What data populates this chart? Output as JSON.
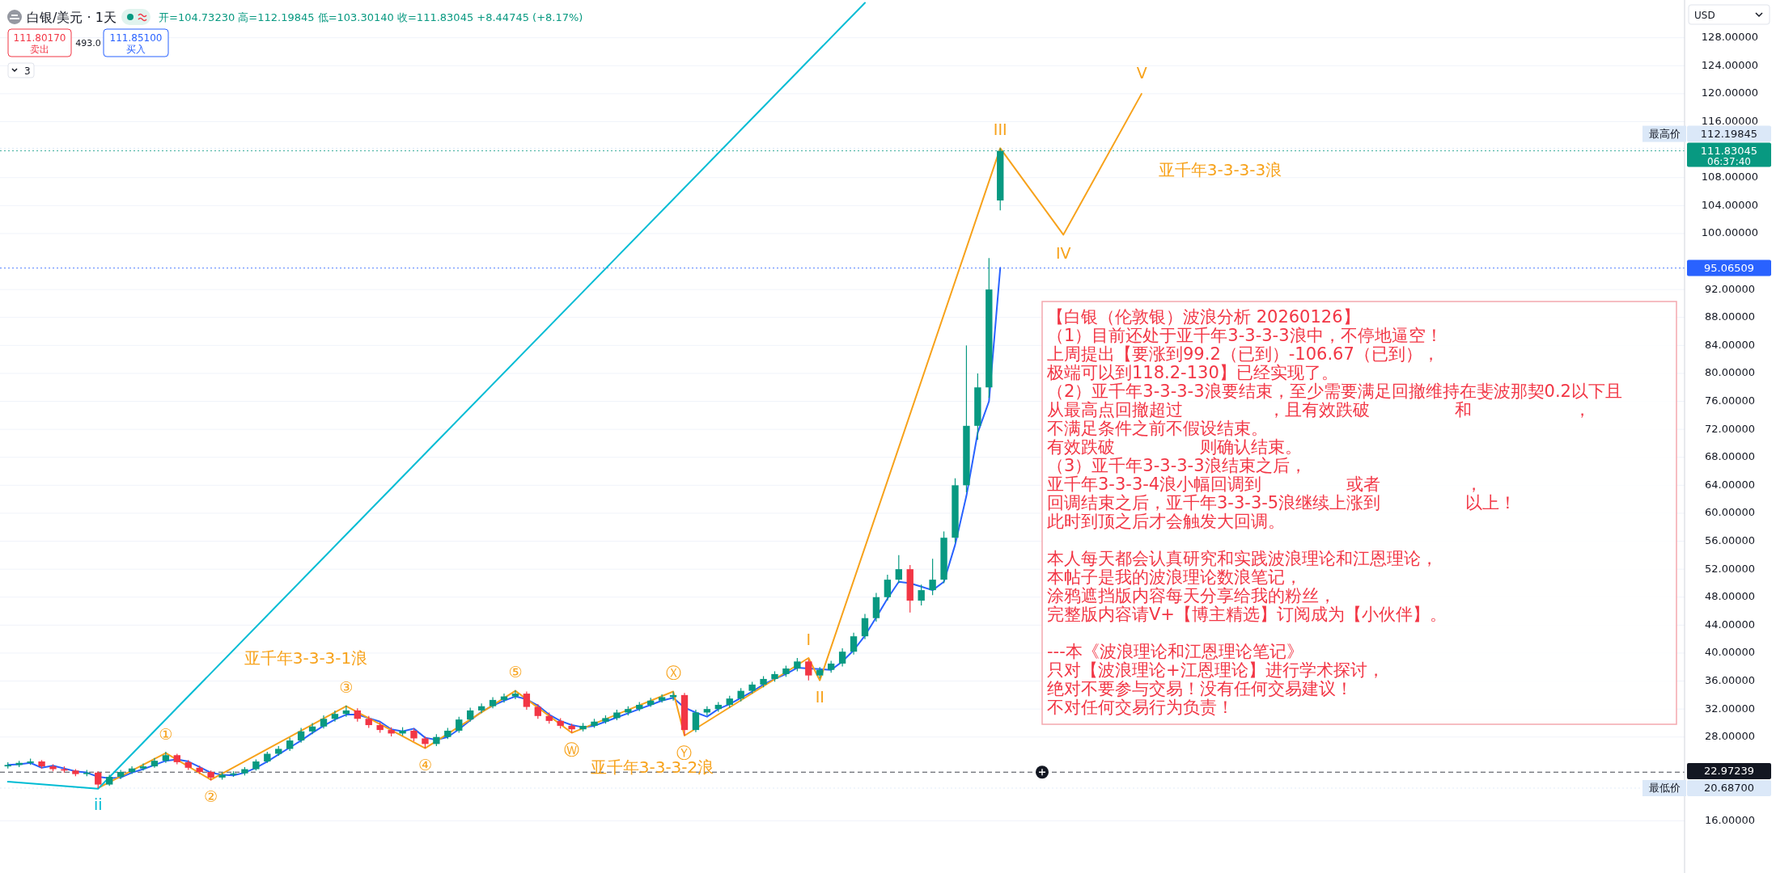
{
  "chart_data": {
    "type": "candlestick",
    "title": "白银/美元 · 1天",
    "subtitle": "开=104.73230 高=112.19845 低=103.30140 收=111.83045 +8.44745 (+8.17%)",
    "categories": [
      null,
      null,
      null,
      null,
      null,
      null,
      null,
      null,
      null,
      null,
      null,
      null,
      null,
      null,
      null,
      null,
      null,
      null,
      null,
      null,
      null,
      null,
      null,
      null,
      null,
      null,
      null,
      null,
      null,
      null,
      null,
      null,
      null,
      null,
      null,
      null,
      null,
      null,
      null,
      null,
      null,
      null,
      null,
      null,
      null,
      null,
      null,
      null,
      null,
      null,
      null,
      null,
      null,
      null,
      null,
      null,
      null,
      null,
      null,
      null,
      null,
      null,
      null,
      null,
      null,
      null,
      null,
      null,
      null,
      null,
      null,
      null,
      null,
      null,
      null,
      null,
      null,
      null,
      null,
      null,
      null,
      null,
      null,
      null,
      null,
      null,
      null,
      null,
      null
    ],
    "ohlc": [
      [
        23.8,
        24.4,
        23.5,
        24.0
      ],
      [
        24.0,
        24.6,
        23.7,
        24.3
      ],
      [
        24.3,
        24.9,
        24.0,
        24.5
      ],
      [
        24.5,
        24.7,
        23.5,
        23.8
      ],
      [
        23.8,
        24.1,
        23.1,
        23.4
      ],
      [
        23.4,
        23.8,
        22.9,
        23.2
      ],
      [
        23.2,
        23.4,
        22.4,
        22.7
      ],
      [
        22.7,
        23.3,
        22.4,
        22.9
      ],
      [
        22.9,
        23.1,
        20.687,
        21.2
      ],
      [
        21.2,
        22.6,
        21.0,
        22.3
      ],
      [
        22.3,
        23.3,
        22.0,
        23.0
      ],
      [
        23.0,
        23.8,
        22.7,
        23.5
      ],
      [
        23.5,
        24.2,
        23.2,
        23.8
      ],
      [
        23.8,
        25.0,
        23.6,
        24.6
      ],
      [
        24.6,
        25.9,
        24.3,
        25.4
      ],
      [
        25.4,
        25.6,
        24.1,
        24.4
      ],
      [
        24.4,
        24.7,
        23.3,
        23.6
      ],
      [
        23.6,
        23.9,
        22.7,
        23.0
      ],
      [
        23.0,
        23.2,
        21.8,
        22.2
      ],
      [
        22.2,
        22.9,
        21.9,
        22.6
      ],
      [
        22.6,
        23.1,
        22.3,
        22.8
      ],
      [
        22.8,
        23.7,
        22.5,
        23.4
      ],
      [
        23.4,
        24.8,
        23.2,
        24.5
      ],
      [
        24.5,
        25.9,
        24.3,
        25.6
      ],
      [
        25.6,
        26.7,
        25.3,
        26.3
      ],
      [
        26.3,
        27.9,
        26.0,
        27.5
      ],
      [
        27.5,
        29.3,
        27.2,
        28.8
      ],
      [
        28.8,
        30.0,
        28.4,
        29.5
      ],
      [
        29.5,
        31.1,
        29.2,
        30.6
      ],
      [
        30.6,
        31.8,
        30.2,
        31.3
      ],
      [
        31.3,
        32.5,
        30.9,
        31.8
      ],
      [
        31.8,
        32.1,
        30.2,
        30.6
      ],
      [
        30.6,
        31.0,
        29.3,
        29.7
      ],
      [
        29.7,
        30.1,
        28.6,
        29.0
      ],
      [
        29.0,
        29.4,
        28.1,
        28.5
      ],
      [
        28.5,
        29.4,
        28.2,
        28.9
      ],
      [
        28.9,
        29.2,
        27.4,
        27.8
      ],
      [
        27.8,
        28.1,
        26.4,
        27.0
      ],
      [
        27.0,
        28.4,
        26.7,
        28.0
      ],
      [
        28.0,
        29.3,
        27.7,
        28.9
      ],
      [
        28.9,
        30.9,
        28.6,
        30.5
      ],
      [
        30.5,
        32.2,
        30.2,
        31.8
      ],
      [
        31.8,
        32.8,
        31.4,
        32.4
      ],
      [
        32.4,
        33.7,
        32.1,
        33.3
      ],
      [
        33.3,
        34.2,
        32.9,
        33.8
      ],
      [
        33.8,
        34.7,
        33.4,
        34.2
      ],
      [
        34.2,
        34.5,
        31.9,
        32.3
      ],
      [
        32.3,
        32.7,
        30.6,
        31.0
      ],
      [
        31.0,
        31.5,
        29.9,
        30.3
      ],
      [
        30.3,
        30.7,
        29.2,
        29.6
      ],
      [
        29.6,
        29.9,
        28.6,
        29.1
      ],
      [
        29.1,
        30.0,
        28.8,
        29.6
      ],
      [
        29.6,
        30.6,
        29.3,
        30.2
      ],
      [
        30.2,
        31.1,
        29.9,
        30.7
      ],
      [
        30.7,
        31.9,
        30.4,
        31.5
      ],
      [
        31.5,
        32.4,
        31.1,
        32.0
      ],
      [
        32.0,
        33.0,
        31.7,
        32.6
      ],
      [
        32.6,
        33.6,
        32.3,
        33.2
      ],
      [
        33.2,
        34.1,
        32.9,
        33.7
      ],
      [
        33.7,
        34.5,
        33.2,
        34.0
      ],
      [
        34.0,
        34.3,
        28.2,
        29.0
      ],
      [
        29.0,
        31.9,
        28.7,
        31.5
      ],
      [
        31.5,
        32.4,
        31.1,
        32.0
      ],
      [
        32.0,
        33.0,
        31.6,
        32.6
      ],
      [
        32.6,
        33.9,
        32.2,
        33.5
      ],
      [
        33.5,
        35.0,
        33.1,
        34.6
      ],
      [
        34.6,
        35.9,
        34.2,
        35.5
      ],
      [
        35.5,
        36.7,
        35.1,
        36.3
      ],
      [
        36.3,
        37.4,
        35.9,
        37.0
      ],
      [
        37.0,
        38.2,
        36.6,
        37.8
      ],
      [
        37.8,
        39.3,
        37.4,
        38.8
      ],
      [
        38.8,
        39.1,
        36.1,
        36.8
      ],
      [
        36.8,
        38.0,
        36.4,
        37.6
      ],
      [
        37.6,
        38.9,
        37.2,
        38.5
      ],
      [
        38.5,
        40.7,
        38.1,
        40.2
      ],
      [
        40.2,
        42.9,
        39.8,
        42.4
      ],
      [
        42.4,
        45.6,
        42.0,
        45.0
      ],
      [
        45.0,
        48.6,
        44.5,
        48.0
      ],
      [
        48.0,
        51.2,
        47.5,
        50.5
      ],
      [
        50.5,
        54.0,
        50.0,
        52.0
      ],
      [
        52.0,
        52.6,
        45.8,
        47.5
      ],
      [
        47.5,
        49.8,
        46.8,
        49.0
      ],
      [
        49.0,
        53.5,
        48.3,
        50.5
      ],
      [
        50.5,
        57.4,
        50.0,
        56.5
      ],
      [
        56.5,
        65.0,
        55.8,
        64.0
      ],
      [
        64.0,
        84.0,
        63.0,
        72.5
      ],
      [
        72.5,
        80.0,
        70.5,
        78.0
      ],
      [
        78.0,
        96.5,
        76.5,
        92.0
      ],
      [
        104.7323,
        112.19845,
        103.3014,
        111.83045
      ]
    ],
    "series": [
      {
        "type": "line",
        "color": "#2962ff",
        "values": [
          24.0,
          24.1,
          24.3,
          23.6,
          23.9,
          23.5,
          23.1,
          22.9,
          22.3,
          22.1,
          22.2,
          22.9,
          23.4,
          24.0,
          24.6,
          24.8,
          24.5,
          23.7,
          22.9,
          22.6,
          22.5,
          22.9,
          23.6,
          24.5,
          25.5,
          26.5,
          27.5,
          28.6,
          29.6,
          30.5,
          31.2,
          31.2,
          30.7,
          30.2,
          29.1,
          28.8,
          29.2,
          27.9,
          27.6,
          28.0,
          29.1,
          30.4,
          31.6,
          32.5,
          33.2,
          33.8,
          33.4,
          32.5,
          31.2,
          30.3,
          29.7,
          29.4,
          29.6,
          30.2,
          30.8,
          31.4,
          32.0,
          32.6,
          33.2,
          33.6,
          32.2,
          31.5,
          30.9,
          32.0,
          32.7,
          33.6,
          34.5,
          35.5,
          36.3,
          37.0,
          37.9,
          37.8,
          37.7,
          37.6,
          38.8,
          40.4,
          42.5,
          45.1,
          47.8,
          50.2,
          50.0,
          49.5,
          49.0,
          50.2,
          55.5,
          62.5,
          71.5,
          76.0,
          95.1
        ]
      },
      {
        "type": "line",
        "color": "#f7a21b",
        "values": [
          null,
          null,
          null,
          null,
          null,
          null,
          null,
          null,
          20.7,
          null,
          null,
          null,
          null,
          null,
          25.7,
          null,
          null,
          null,
          21.9,
          null,
          null,
          null,
          null,
          null,
          null,
          null,
          null,
          null,
          null,
          null,
          32.4,
          null,
          null,
          null,
          null,
          null,
          null,
          26.4,
          null,
          null,
          null,
          null,
          null,
          null,
          null,
          34.6,
          null,
          null,
          null,
          null,
          28.6,
          null,
          null,
          null,
          null,
          null,
          null,
          null,
          null,
          34.5,
          28.2,
          null,
          null,
          null,
          null,
          null,
          null,
          null,
          null,
          null,
          null,
          39.3,
          36.1,
          null,
          null,
          null,
          null,
          null,
          null,
          null,
          null,
          null,
          null,
          null,
          null,
          null,
          null,
          null,
          112.2
        ]
      },
      {
        "type": "line",
        "color": "#00bcd4",
        "values": [
          21.6,
          null,
          null,
          null,
          null,
          null,
          null,
          null,
          20.6,
          null,
          null,
          null,
          null,
          null,
          null,
          null,
          null,
          null,
          null,
          null,
          null,
          null,
          null,
          null,
          null,
          null,
          null,
          null,
          null,
          null,
          null,
          null,
          null,
          null,
          null,
          null,
          null,
          null,
          null,
          null,
          null,
          null,
          null,
          null,
          null,
          null,
          null,
          null,
          null,
          null,
          null,
          null,
          null,
          null,
          null,
          null,
          null,
          null,
          null,
          null,
          null,
          null,
          null,
          null,
          null,
          null,
          null,
          null,
          null,
          null,
          null,
          null,
          null,
          null,
          null,
          null,
          133.0,
          null,
          null,
          null,
          null,
          null,
          null,
          null,
          null,
          null,
          null,
          null,
          null
        ]
      }
    ],
    "ylim": [
      8.55,
      133.4
    ],
    "yticks": [
      {
        "value": 16,
        "label": "16.00000"
      },
      {
        "value": 28,
        "label": "28.00000"
      },
      {
        "value": 32,
        "label": "32.00000"
      },
      {
        "value": 36,
        "label": "36.00000"
      },
      {
        "value": 40,
        "label": "40.00000"
      },
      {
        "value": 44,
        "label": "44.00000"
      },
      {
        "value": 48,
        "label": "48.00000"
      },
      {
        "value": 52,
        "label": "52.00000"
      },
      {
        "value": 56,
        "label": "56.00000"
      },
      {
        "value": 60,
        "label": "60.00000"
      },
      {
        "value": 64,
        "label": "64.00000"
      },
      {
        "value": 68,
        "label": "68.00000"
      },
      {
        "value": 72,
        "label": "72.00000"
      },
      {
        "value": 76,
        "label": "76.00000"
      },
      {
        "value": 80,
        "label": "80.00000"
      },
      {
        "value": 84,
        "label": "84.00000"
      },
      {
        "value": 88,
        "label": "88.00000"
      },
      {
        "value": 92,
        "label": "92.00000"
      },
      {
        "value": 100,
        "label": "100.00000"
      },
      {
        "value": 104,
        "label": "104.00000"
      },
      {
        "value": 108,
        "label": "108.00000"
      },
      {
        "value": 116,
        "label": "116.00000"
      },
      {
        "value": 120,
        "label": "120.00000"
      },
      {
        "value": 124,
        "label": "124.00000"
      },
      {
        "value": 128,
        "label": "128.00000"
      }
    ],
    "tick_labels": "y",
    "grid": "y",
    "ref_lines": [
      {
        "axis": "y",
        "value": 112.19845,
        "label": "112.19845",
        "color": "#dbe8f8",
        "line_style": "dotted"
      },
      {
        "axis": "y",
        "value": 111.83045,
        "label": "111.83045",
        "color": "#089981",
        "line_style": "dotted"
      },
      {
        "axis": "y",
        "value": 95.06509,
        "label": "95.06509",
        "color": "#2962ff",
        "line_style": "dotted"
      },
      {
        "axis": "y",
        "value": 22.97239,
        "label": "22.97239",
        "color": "#131722",
        "line_style": "dashed"
      },
      {
        "axis": "y",
        "value": 20.687,
        "label": "20.68700",
        "color": "#dbe8f8",
        "line_style": "dotted"
      }
    ],
    "annotations": [
      "111.80170",
      "卖出",
      "493.0",
      "111.85100",
      "买入",
      "3",
      "USD",
      "最高价",
      "06:37:40",
      "最低价",
      "亚千年3-3-3-1浪",
      "亚千年3-3-3-2浪",
      "亚千年3-3-3-3浪",
      "ii",
      "①",
      "②",
      "③",
      "④",
      "⑤",
      "Ⓦ",
      "Ⓧ",
      "Ⓨ",
      "I",
      "II",
      "III",
      "IV",
      "V",
      "【白银（伦敦银）波浪分析 20260126】",
      "（1）目前还处于亚千年3-3-3-3浪中，不停地逼空！",
      "上周提出【要涨到99.2（已到）-106.67（已到），",
      "极端可以到118.2-130】已经实现了。",
      "（2）亚千年3-3-3-3浪要结束，至少需要满足回撤维持在斐波那契0.2以下且",
      "从最高点回撤超过　　　　　，且有效跌破　　　　　和　　　　　　，",
      "不满足条件之前不假设结束。",
      "有效跌破　　　　　则确认结束。",
      "（3）亚千年3-3-3-3浪结束之后，",
      "亚千年3-3-3-4浪小幅回调到　　　　　或者　　　　　，",
      "回调结束之后，亚千年3-3-3-5浪继续上涨到　　　　　以上！",
      "此时到顶之后才会触发大回调。",
      "本人每天都会认真研究和实践波浪理论和江恩理论，",
      "本帖子是我的波浪理论数浪笔记，",
      "涂鸦遮挡版内容每天分享给我的粉丝，",
      "完整版内容请V+【博主精选】订阅成为【小伙伴】。",
      "---本《波浪理论和江恩理论笔记》",
      "只对【波浪理论+江恩理论】进行学术探讨，",
      "绝对不要参与交易！没有任何交易建议！",
      "不对任何交易行为负责！"
    ]
  }
}
